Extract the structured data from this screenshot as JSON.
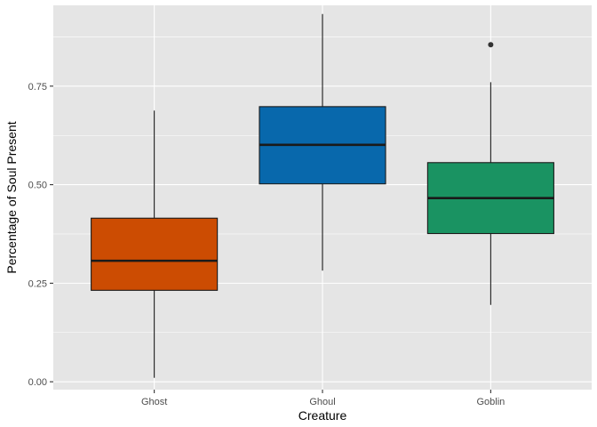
{
  "chart_data": {
    "type": "boxplot",
    "title": "",
    "xlabel": "Creature",
    "ylabel": "Percentage of Soul Present",
    "categories": [
      "Ghost",
      "Ghoul",
      "Goblin"
    ],
    "ylim": [
      -0.02,
      0.955
    ],
    "yticks": [
      0.0,
      0.25,
      0.5,
      0.75
    ],
    "ytick_labels": [
      "0.00",
      "0.25",
      "0.50",
      "0.75"
    ],
    "grid": true,
    "legend": "none",
    "boxes": [
      {
        "category": "Ghost",
        "color": "#cc4c02",
        "whisker_low": 0.01,
        "q1": 0.232,
        "median": 0.307,
        "q3": 0.415,
        "whisker_high": 0.688,
        "outliers": []
      },
      {
        "category": "Ghoul",
        "color": "#0868ac",
        "whisker_low": 0.282,
        "q1": 0.502,
        "median": 0.601,
        "q3": 0.698,
        "whisker_high": 0.933,
        "outliers": []
      },
      {
        "category": "Goblin",
        "color": "#1a9362",
        "whisker_low": 0.195,
        "q1": 0.376,
        "median": 0.466,
        "q3": 0.556,
        "whisker_high": 0.76,
        "outliers": [
          0.855
        ]
      }
    ],
    "colors": {
      "panel": "#e5e5e5",
      "grid": "#ffffff",
      "outline": "#1a1a1a",
      "outlier": "#333333"
    }
  }
}
